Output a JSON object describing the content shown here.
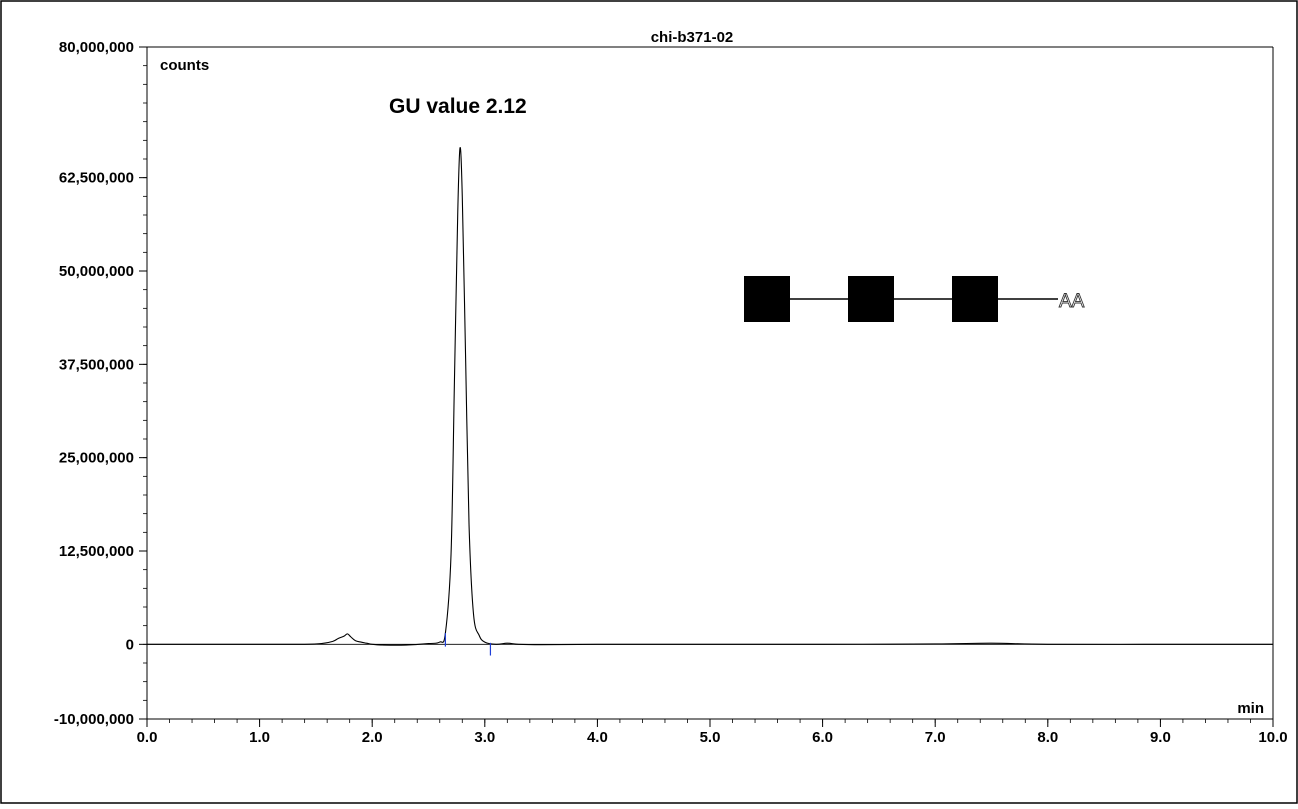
{
  "chart_data": {
    "type": "line",
    "title": "chi-b371-02",
    "annotation": "GU value 2.12",
    "ylabel": "counts",
    "xlabel": "min",
    "xlim": [
      0,
      10
    ],
    "ylim": [
      -10000000,
      80000000
    ],
    "x_ticks": [
      0,
      1,
      2,
      3,
      4,
      5,
      6,
      7,
      8,
      9,
      10
    ],
    "x_tick_labels": [
      "0.0",
      "1.0",
      "2.0",
      "3.0",
      "4.0",
      "5.0",
      "6.0",
      "7.0",
      "8.0",
      "9.0",
      "10.0"
    ],
    "y_ticks": [
      -10000000,
      0,
      12500000,
      25000000,
      37500000,
      50000000,
      62500000,
      80000000
    ],
    "y_tick_labels": [
      "-10,000,000",
      "0",
      "12,500,000",
      "25,000,000",
      "37,500,000",
      "50,000,000",
      "62,500,000",
      "80,000,000"
    ],
    "grid": false,
    "series": [
      {
        "x": [
          0.0,
          0.5,
          1.0,
          1.4,
          1.55,
          1.65,
          1.7,
          1.75,
          1.78,
          1.81,
          1.85,
          1.9,
          1.95,
          2.0,
          2.1,
          2.3,
          2.5,
          2.6,
          2.65,
          2.7,
          2.73,
          2.76,
          2.78,
          2.8,
          2.83,
          2.86,
          2.9,
          2.95,
          3.0,
          3.1,
          3.2,
          3.3,
          3.5,
          4.0,
          5.0,
          6.0,
          7.0,
          7.5,
          8.0,
          9.0,
          10.0
        ],
        "y": [
          0,
          0,
          0,
          0,
          100000,
          400000,
          800000,
          1100000,
          1400000,
          1000000,
          500000,
          300000,
          150000,
          0,
          -100000,
          -100000,
          100000,
          300000,
          1500000,
          12000000,
          35000000,
          58000000,
          66500000,
          60000000,
          38000000,
          16000000,
          4000000,
          1200000,
          300000,
          0,
          150000,
          0,
          -50000,
          0,
          0,
          0,
          50000,
          150000,
          0,
          0,
          0
        ],
        "color": "#000000"
      }
    ],
    "integration_markers": [
      {
        "x": 2.65,
        "y_top": 1500000,
        "y_bottom": -300000,
        "color": "#1f3fd8"
      },
      {
        "x": 3.05,
        "y_top": 200000,
        "y_bottom": -1500000,
        "color": "#1f3fd8"
      }
    ],
    "glycan_structure": {
      "residue_count": 3,
      "residue_shape": "filled-square",
      "residue_color": "#000000",
      "label": "AA"
    }
  }
}
